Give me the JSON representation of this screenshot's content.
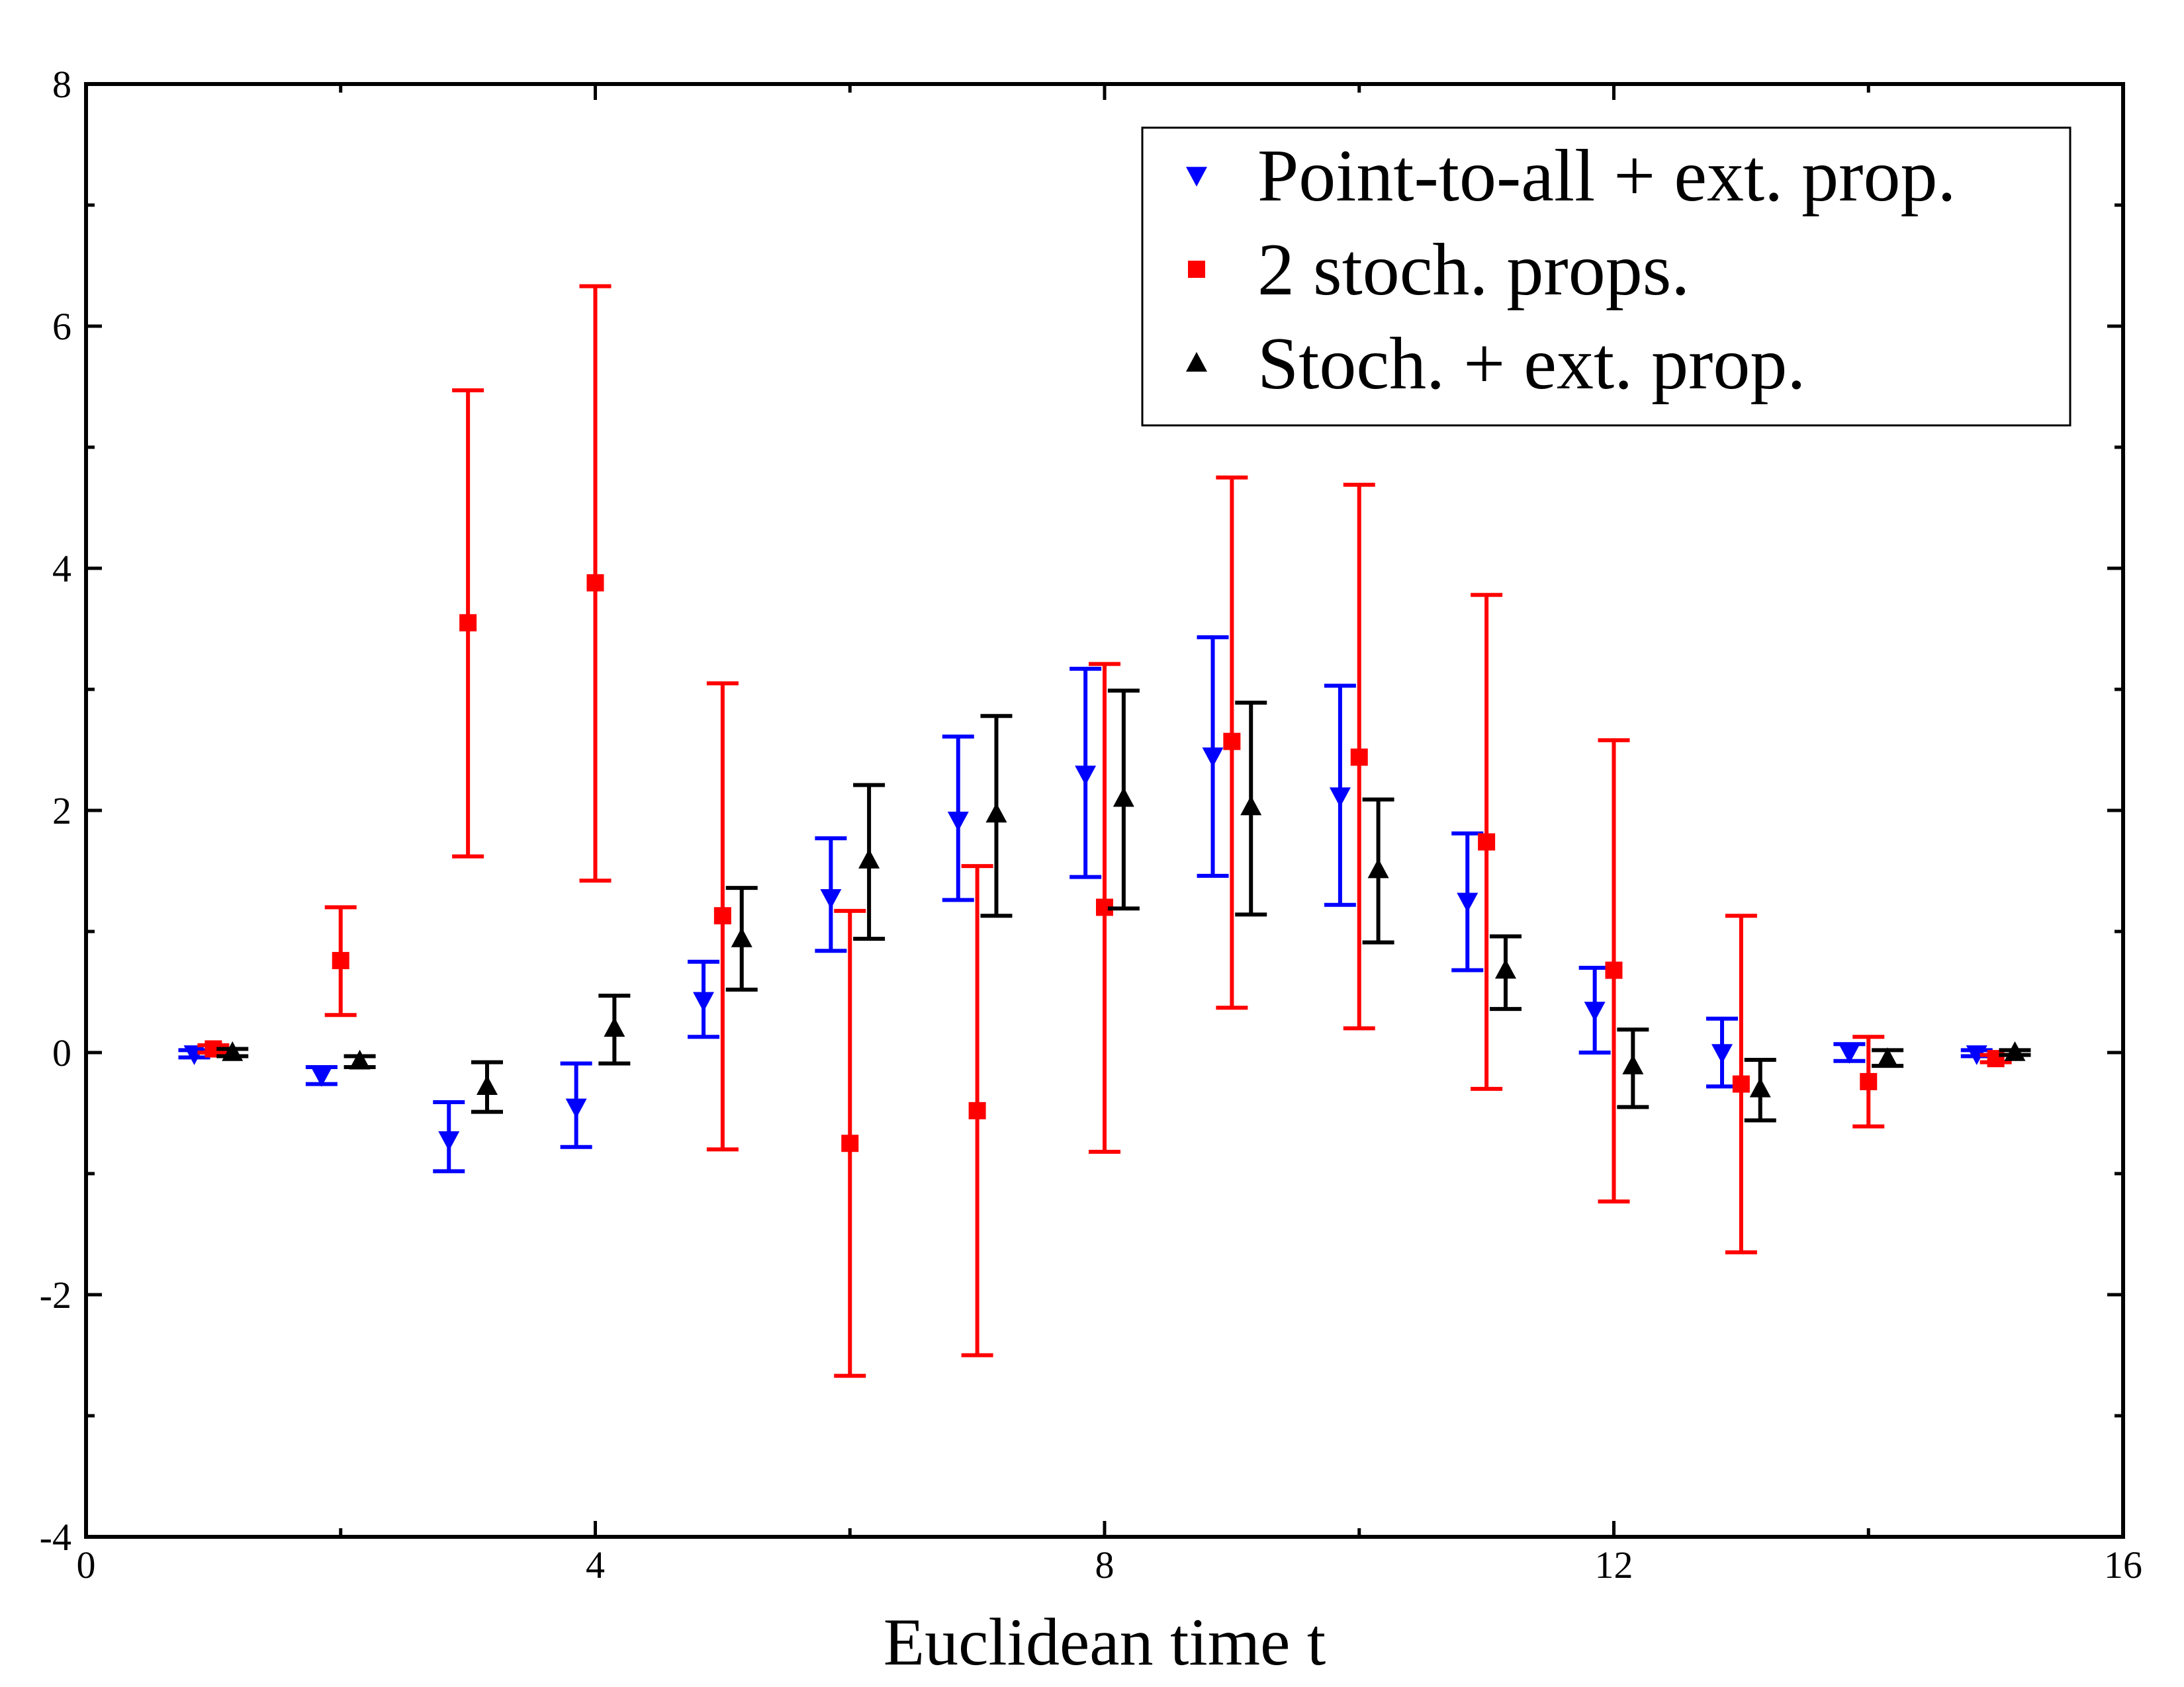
{
  "chart_data": {
    "type": "scatter",
    "title": "",
    "xlabel": "Euclidean time t",
    "ylabel": "",
    "xlim": [
      0,
      16
    ],
    "ylim": [
      -4,
      8
    ],
    "xticks": [
      0,
      4,
      8,
      12,
      16
    ],
    "xtick_labels": [
      "0",
      "4",
      "8",
      "12",
      "16"
    ],
    "yticks": [
      -4,
      -2,
      0,
      2,
      4,
      6,
      8
    ],
    "ytick_labels": [
      "-4",
      "-2",
      "0",
      "2",
      "4",
      "6",
      "8"
    ],
    "x_minor_step": 2,
    "y_minor_step": 1,
    "grid": false,
    "legend_position": "top-right",
    "series": [
      {
        "name": "Point-to-all + ext. prop.",
        "color": "#0000ff",
        "marker": "triangle-down",
        "points": [
          {
            "x": 0.85,
            "y": -0.01,
            "lo": -0.04,
            "hi": 0.02
          },
          {
            "x": 1.85,
            "y": -0.19,
            "lo": -0.26,
            "hi": -0.12
          },
          {
            "x": 2.85,
            "y": -0.72,
            "lo": -0.98,
            "hi": -0.41
          },
          {
            "x": 3.85,
            "y": -0.45,
            "lo": -0.78,
            "hi": -0.09
          },
          {
            "x": 4.85,
            "y": 0.43,
            "lo": 0.13,
            "hi": 0.75
          },
          {
            "x": 5.85,
            "y": 1.28,
            "lo": 0.84,
            "hi": 1.77
          },
          {
            "x": 6.85,
            "y": 1.92,
            "lo": 1.26,
            "hi": 2.61
          },
          {
            "x": 7.85,
            "y": 2.3,
            "lo": 1.45,
            "hi": 3.17
          },
          {
            "x": 8.85,
            "y": 2.45,
            "lo": 1.46,
            "hi": 3.43
          },
          {
            "x": 9.85,
            "y": 2.12,
            "lo": 1.22,
            "hi": 3.03
          },
          {
            "x": 10.85,
            "y": 1.25,
            "lo": 0.68,
            "hi": 1.81
          },
          {
            "x": 11.85,
            "y": 0.35,
            "lo": 0.0,
            "hi": 0.7
          },
          {
            "x": 12.85,
            "y": 0.0,
            "lo": -0.28,
            "hi": 0.28
          },
          {
            "x": 13.85,
            "y": 0.0,
            "lo": -0.07,
            "hi": 0.07
          },
          {
            "x": 14.85,
            "y": -0.01,
            "lo": -0.03,
            "hi": 0.02
          }
        ]
      },
      {
        "name": "2 stoch. props.",
        "color": "#ff0000",
        "marker": "square",
        "points": [
          {
            "x": 1.0,
            "y": 0.03,
            "lo": 0.0,
            "hi": 0.06
          },
          {
            "x": 2.0,
            "y": 0.76,
            "lo": 0.31,
            "hi": 1.2
          },
          {
            "x": 3.0,
            "y": 3.55,
            "lo": 1.62,
            "hi": 5.47
          },
          {
            "x": 4.0,
            "y": 3.88,
            "lo": 1.42,
            "hi": 6.33
          },
          {
            "x": 5.0,
            "y": 1.13,
            "lo": -0.8,
            "hi": 3.05
          },
          {
            "x": 6.0,
            "y": -0.75,
            "lo": -2.67,
            "hi": 1.17
          },
          {
            "x": 7.0,
            "y": -0.48,
            "lo": -2.5,
            "hi": 1.54
          },
          {
            "x": 8.0,
            "y": 1.2,
            "lo": -0.82,
            "hi": 3.21
          },
          {
            "x": 9.0,
            "y": 2.57,
            "lo": 0.37,
            "hi": 4.75
          },
          {
            "x": 10.0,
            "y": 2.44,
            "lo": 0.2,
            "hi": 4.69
          },
          {
            "x": 11.0,
            "y": 1.74,
            "lo": -0.3,
            "hi": 3.78
          },
          {
            "x": 12.0,
            "y": 0.68,
            "lo": -1.23,
            "hi": 2.58
          },
          {
            "x": 13.0,
            "y": -0.26,
            "lo": -1.65,
            "hi": 1.13
          },
          {
            "x": 14.0,
            "y": -0.24,
            "lo": -0.61,
            "hi": 0.13
          },
          {
            "x": 15.0,
            "y": -0.05,
            "lo": -0.08,
            "hi": -0.02
          }
        ]
      },
      {
        "name": "Stoch. + ext. prop.",
        "color": "#000000",
        "marker": "triangle-up",
        "points": [
          {
            "x": 1.15,
            "y": 0.0,
            "lo": -0.03,
            "hi": 0.03
          },
          {
            "x": 2.15,
            "y": -0.07,
            "lo": -0.12,
            "hi": -0.03
          },
          {
            "x": 3.15,
            "y": -0.28,
            "lo": -0.49,
            "hi": -0.08
          },
          {
            "x": 4.15,
            "y": 0.2,
            "lo": -0.09,
            "hi": 0.47
          },
          {
            "x": 5.15,
            "y": 0.94,
            "lo": 0.52,
            "hi": 1.36
          },
          {
            "x": 6.15,
            "y": 1.59,
            "lo": 0.94,
            "hi": 2.21
          },
          {
            "x": 7.15,
            "y": 1.97,
            "lo": 1.13,
            "hi": 2.78
          },
          {
            "x": 8.15,
            "y": 2.1,
            "lo": 1.19,
            "hi": 2.99
          },
          {
            "x": 9.15,
            "y": 2.03,
            "lo": 1.14,
            "hi": 2.89
          },
          {
            "x": 10.15,
            "y": 1.51,
            "lo": 0.91,
            "hi": 2.09
          },
          {
            "x": 11.15,
            "y": 0.68,
            "lo": 0.36,
            "hi": 0.96
          },
          {
            "x": 12.15,
            "y": -0.11,
            "lo": -0.45,
            "hi": 0.19
          },
          {
            "x": 13.15,
            "y": -0.3,
            "lo": -0.56,
            "hi": -0.06
          },
          {
            "x": 14.15,
            "y": -0.05,
            "lo": -0.11,
            "hi": 0.02
          },
          {
            "x": 15.15,
            "y": 0.0,
            "lo": -0.02,
            "hi": 0.02
          }
        ]
      }
    ]
  }
}
